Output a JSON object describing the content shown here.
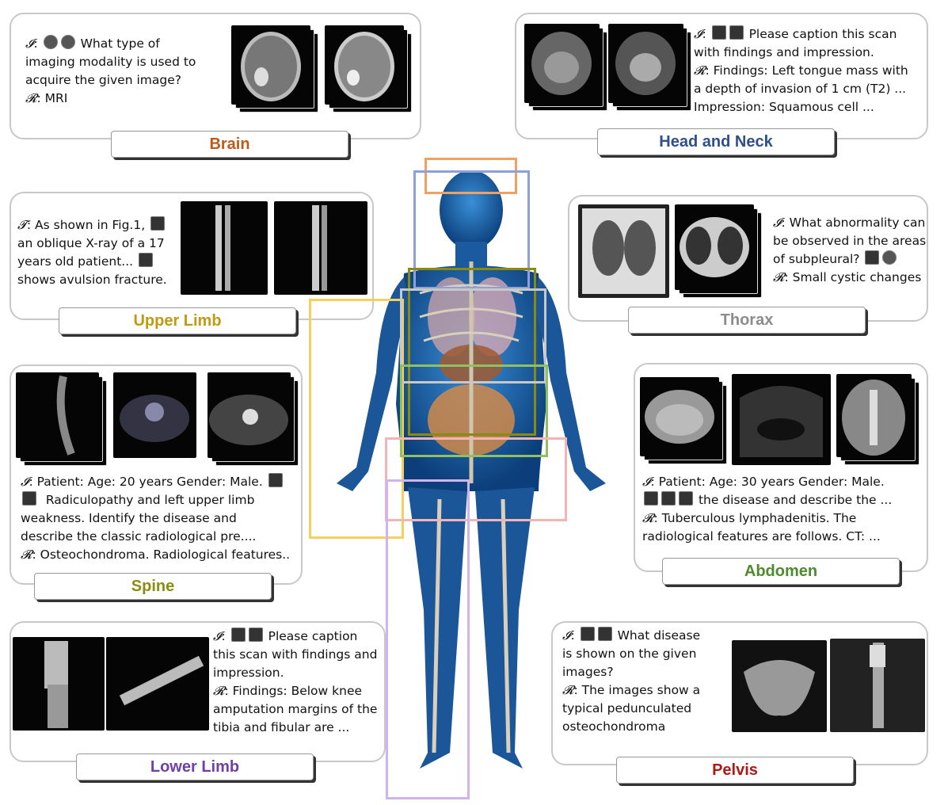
{
  "regions": {
    "brain": {
      "label": "Brain",
      "color": "#c05a1a",
      "lines": [
        "What type of",
        "imaging modality is used to",
        "acquire the given image?",
        ": MRI"
      ]
    },
    "head_neck": {
      "label": "Head and Neck",
      "color": "#2e4e8c",
      "lines": [
        "Please caption this scan",
        "with findings and impression.",
        ": Findings: Left tongue mass with",
        "a depth of invasion of 1 cm (T2) ...",
        "Impression: Squamous cell ..."
      ]
    },
    "upper_limb": {
      "label": "Upper Limb",
      "color": "#c09a10",
      "lines": [
        ": As shown in Fig.1,",
        "an oblique X-ray of a 17",
        "years old patient...",
        "shows avulsion fracture."
      ]
    },
    "thorax": {
      "label": "Thorax",
      "color": "#8c8c8c",
      "lines": [
        ": What abnormality can",
        "be observed in the areas",
        "of subpleural?",
        ": Small cystic changes"
      ]
    },
    "spine": {
      "label": "Spine",
      "color": "#8c8c10",
      "lines": [
        ": Patient: Age: 20 years Gender: Male.",
        "Radiculopathy and left upper limb",
        "weakness. Identify the disease and",
        "describe  the classic radiological pre....",
        ": Osteochondroma. Radiological features.."
      ]
    },
    "abdomen": {
      "label": "Abdomen",
      "color": "#4e8a2e",
      "lines": [
        ": Patient: Age: 30 years Gender: Male.",
        "the disease and describe the ...",
        ": Tuberculous  lymphadenitis.  The",
        "radiological features are follows.  CT: ..."
      ]
    },
    "lower_limb": {
      "label": "Lower Limb",
      "color": "#7040a8",
      "lines": [
        ":",
        "Please caption",
        "this scan with findings and",
        "impression.",
        ": Findings: Below knee",
        "amputation margins of the",
        "tibia and fibular are ..."
      ]
    },
    "pelvis": {
      "label": "Pelvis",
      "color": "#b01818",
      "lines": [
        ":",
        "What disease",
        "is shown on the given",
        "images?",
        ": The images show a",
        "typical pedunculated",
        "osteochondroma"
      ]
    }
  },
  "symbols": {
    "instruction": "𝓘",
    "response": "𝓡",
    "text": "𝓣"
  },
  "body_boxes": {
    "head": "#f0a060",
    "head_neck": "#8fa0d8",
    "upper_limb": "#f5d060",
    "thorax": "#8a8a10",
    "thorax2": "#c8c8c8",
    "abdomen": "#90c060",
    "pelvis": "#f4b4b4",
    "lower_limb": "#d0b4f0"
  }
}
